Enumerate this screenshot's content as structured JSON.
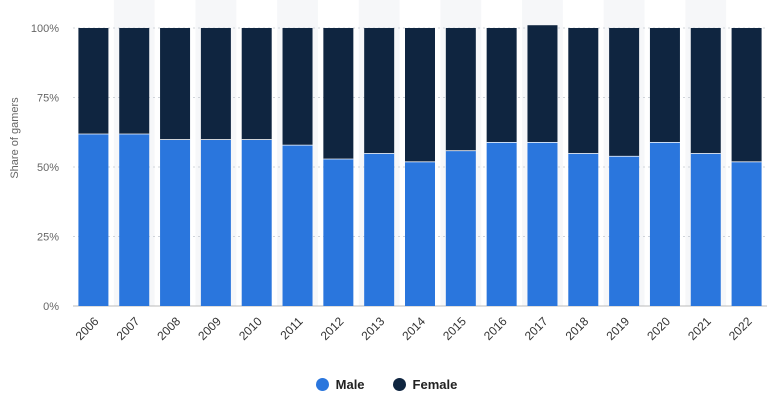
{
  "chart_data": {
    "type": "bar",
    "stacked": true,
    "title": "",
    "xlabel": "",
    "ylabel": "Share of gamers",
    "ylim": [
      0,
      100
    ],
    "y_ticks": [
      "0%",
      "25%",
      "50%",
      "75%",
      "100%"
    ],
    "grid": true,
    "legend_position": "bottom",
    "categories": [
      "2006",
      "2007",
      "2008",
      "2009",
      "2010",
      "2011",
      "2012",
      "2013",
      "2014",
      "2015",
      "2016",
      "2017",
      "2018",
      "2019",
      "2020",
      "2021",
      "2022"
    ],
    "series": [
      {
        "name": "Male",
        "color": "#2a76dd",
        "values": [
          62,
          62,
          60,
          60,
          60,
          58,
          53,
          55,
          52,
          56,
          59,
          59,
          55,
          54,
          59,
          55,
          52
        ]
      },
      {
        "name": "Female",
        "color": "#0f2540",
        "values": [
          38,
          38,
          40,
          40,
          40,
          42,
          47,
          45,
          48,
          44,
          41,
          42,
          45,
          46,
          41,
          45,
          48
        ]
      }
    ]
  }
}
